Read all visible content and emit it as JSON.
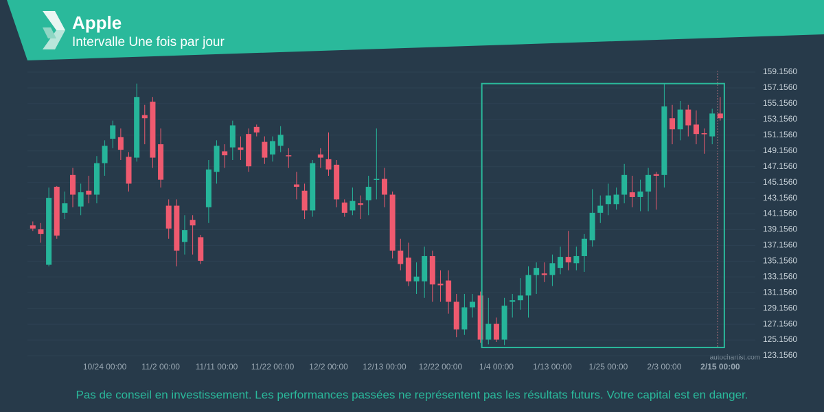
{
  "header": {
    "title": "Apple",
    "subtitle": "Intervalle Une fois par jour"
  },
  "footer": {
    "disclaimer": "Pas de conseil en investissement. Les performances passées ne représentent pas les résultats futurs. Votre capital est en danger."
  },
  "watermark": "autochartist.com",
  "chart_data": {
    "type": "candlestick",
    "categories": [
      null,
      null,
      null,
      null,
      null,
      null,
      null,
      null,
      null,
      "10/24 00:00",
      null,
      null,
      null,
      null,
      null,
      null,
      "11/2 00:00",
      null,
      null,
      null,
      null,
      null,
      null,
      "11/11 00:00",
      null,
      null,
      null,
      null,
      null,
      null,
      "11/22 00:00",
      null,
      null,
      null,
      null,
      null,
      null,
      "12/2 00:00",
      null,
      null,
      null,
      null,
      null,
      null,
      "12/13 00:00",
      null,
      null,
      null,
      null,
      null,
      null,
      "12/22 00:00",
      null,
      null,
      null,
      null,
      null,
      null,
      "1/4 00:00",
      null,
      null,
      null,
      null,
      null,
      null,
      "1/13 00:00",
      null,
      null,
      null,
      null,
      null,
      null,
      "1/25 00:00",
      null,
      null,
      null,
      null,
      null,
      null,
      "2/3 00:00",
      null,
      null,
      null,
      null,
      null,
      null,
      "2/15 00:00"
    ],
    "open": [
      139.7,
      139.2,
      134.7,
      144.6,
      141.3,
      146.1,
      142.1,
      144.1,
      143.6,
      147.6,
      150.7,
      150.9,
      148.4,
      148.3,
      153.7,
      155.4,
      150.0,
      142.2,
      142.2,
      137.6,
      140.4,
      138.2,
      142.0,
      146.5,
      149.1,
      149.6,
      149.6,
      151.3,
      152.2,
      150.3,
      148.7,
      149.8,
      148.6,
      144.9,
      144.1,
      141.6,
      148.7,
      148.1,
      147.4,
      142.6,
      141.6,
      142.5,
      142.9,
      145.5,
      145.6,
      143.6,
      136.5,
      135.6,
      132.6,
      132.6,
      135.8,
      132.3,
      132.7,
      130.0,
      126.5,
      129.3,
      130.8,
      125.2,
      127.2,
      125.2,
      130.0,
      130.2,
      130.8,
      133.4,
      133.6,
      133.4,
      134.3,
      135.7,
      134.9,
      135.8,
      137.8,
      141.3,
      142.4,
      142.4,
      143.6,
      143.9,
      143.3,
      144.0,
      146.2,
      146.1,
      153.3,
      151.9,
      154.4,
      152.5,
      151.4,
      151.0,
      153.9
    ],
    "high": [
      140.2,
      140.0,
      144.5,
      144.7,
      144.0,
      147.0,
      145.0,
      146.0,
      148.5,
      150.5,
      153.0,
      152.0,
      149.0,
      157.7,
      155.0,
      156.0,
      152.0,
      143.0,
      143.0,
      141.0,
      141.0,
      138.5,
      148.0,
      150.5,
      150.0,
      153.0,
      151.0,
      152.0,
      152.5,
      151.0,
      151.0,
      152.3,
      149.5,
      146.5,
      145.0,
      148.0,
      149.5,
      151.5,
      148.0,
      143.0,
      144.5,
      143.5,
      146.0,
      152.0,
      147.0,
      144.0,
      138.0,
      137.5,
      135.0,
      137.0,
      136.5,
      134.0,
      134.0,
      131.0,
      131.0,
      131.0,
      131.3,
      130.5,
      128.0,
      130.5,
      131.0,
      133.0,
      134.5,
      135.0,
      135.0,
      136.0,
      137.0,
      139.0,
      137.0,
      138.6,
      144.3,
      143.5,
      145.0,
      144.5,
      147.5,
      146.0,
      145.5,
      147.0,
      146.5,
      157.7,
      155.0,
      155.5,
      155.0,
      154.3,
      152.0,
      154.5,
      156.0
    ],
    "low": [
      139.0,
      137.5,
      134.5,
      138.0,
      140.5,
      142.0,
      141.0,
      142.5,
      142.5,
      146.0,
      149.5,
      148.0,
      144.0,
      147.8,
      150.0,
      147.0,
      144.5,
      138.0,
      134.5,
      136.0,
      136.0,
      134.8,
      140.0,
      145.0,
      147.0,
      148.0,
      148.0,
      146.5,
      151.0,
      147.5,
      147.8,
      149.0,
      147.0,
      143.0,
      140.5,
      140.8,
      147.0,
      146.0,
      142.0,
      140.8,
      141.0,
      140.5,
      141.0,
      143.0,
      142.0,
      135.5,
      134.0,
      132.0,
      131.0,
      130.5,
      130.0,
      130.0,
      128.5,
      125.5,
      125.8,
      128.0,
      124.8,
      124.6,
      124.9,
      124.5,
      128.0,
      129.0,
      128.0,
      131.0,
      132.5,
      132.0,
      133.5,
      134.0,
      134.0,
      133.8,
      137.0,
      140.0,
      141.0,
      141.7,
      142.5,
      142.0,
      141.5,
      141.5,
      141.7,
      144.5,
      150.0,
      150.5,
      151.0,
      150.0,
      148.8,
      150.0,
      153.0
    ],
    "close": [
      139.3,
      138.6,
      143.2,
      138.4,
      142.5,
      143.6,
      143.9,
      143.6,
      147.6,
      149.8,
      152.4,
      149.3,
      145.0,
      156.0,
      153.3,
      148.3,
      145.5,
      139.3,
      136.5,
      139.1,
      139.7,
      135.2,
      146.8,
      149.8,
      148.6,
      152.4,
      149.3,
      147.2,
      151.5,
      148.3,
      150.4,
      151.2,
      148.5,
      144.6,
      141.6,
      147.6,
      148.3,
      146.8,
      143.0,
      141.3,
      142.8,
      142.3,
      144.6,
      145.6,
      143.6,
      136.5,
      134.8,
      132.6,
      133.2,
      135.8,
      132.2,
      132.1,
      130.0,
      126.5,
      129.3,
      130.0,
      125.2,
      127.2,
      125.2,
      129.5,
      130.2,
      130.8,
      133.4,
      134.3,
      133.4,
      134.9,
      135.7,
      135.0,
      135.8,
      138.0,
      141.3,
      142.2,
      143.5,
      143.6,
      146.1,
      143.3,
      144.0,
      146.1,
      146.0,
      154.8,
      151.9,
      154.4,
      152.4,
      151.3,
      151.3,
      153.9,
      153.3
    ],
    "up_color": "#26b59a",
    "down_color": "#ef5a6f",
    "ylim": [
      122.6,
      159.9
    ],
    "yticks": [
      {
        "value": 123.156,
        "label": "123.1560"
      },
      {
        "value": 125.156,
        "label": "125.1560"
      },
      {
        "value": 127.156,
        "label": "127.1560"
      },
      {
        "value": 129.156,
        "label": "129.1560"
      },
      {
        "value": 131.156,
        "label": "131.1560"
      },
      {
        "value": 133.156,
        "label": "133.1560"
      },
      {
        "value": 135.156,
        "label": "135.1560"
      },
      {
        "value": 137.156,
        "label": "137.1560"
      },
      {
        "value": 139.156,
        "label": "139.1560"
      },
      {
        "value": 141.156,
        "label": "141.1560"
      },
      {
        "value": 143.156,
        "label": "143.1560"
      },
      {
        "value": 145.156,
        "label": "145.1560"
      },
      {
        "value": 147.156,
        "label": "147.1560"
      },
      {
        "value": 149.156,
        "label": "149.1560"
      },
      {
        "value": 151.156,
        "label": "151.1560"
      },
      {
        "value": 153.156,
        "label": "153.1560"
      },
      {
        "value": 155.156,
        "label": "155.1560"
      },
      {
        "value": 157.156,
        "label": "157.1560"
      },
      {
        "value": 159.156,
        "label": "159.1560"
      }
    ],
    "pattern": {
      "x": [
        56,
        86
      ],
      "ylim": [
        124.2,
        157.7
      ],
      "color": "#2ab99b"
    }
  }
}
